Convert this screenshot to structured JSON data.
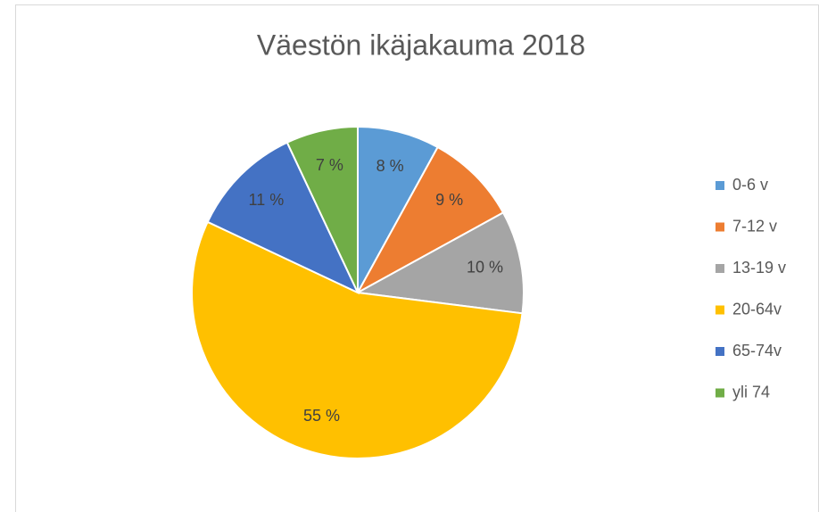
{
  "chart_data": {
    "type": "pie",
    "title": "Väestön ikäjakauma 2018",
    "categories": [
      "0-6 v",
      "7-12 v",
      "13-19 v",
      "20-64v",
      "65-74v",
      "yli 74"
    ],
    "values": [
      8,
      9,
      10,
      55,
      11,
      7
    ],
    "value_labels": [
      "8 %",
      "9 %",
      "10 %",
      "55 %",
      "11 %",
      "7 %"
    ],
    "colors": [
      "#5b9bd5",
      "#ed7d31",
      "#a5a5a5",
      "#ffc000",
      "#4472c4",
      "#70ad47"
    ],
    "legend": "right"
  }
}
